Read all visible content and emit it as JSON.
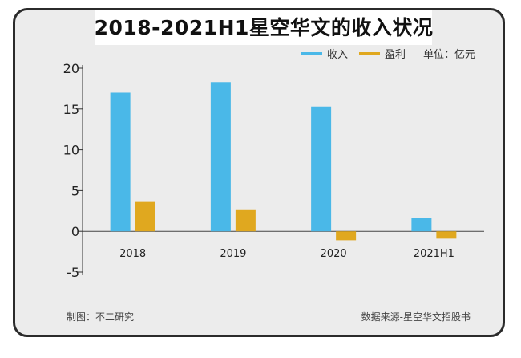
{
  "title": "2018-2021H1星空华文的收入状况",
  "legend": {
    "items": [
      {
        "label": "收入",
        "color": "#4ab8e8"
      },
      {
        "label": "盈利",
        "color": "#e0a81f"
      }
    ],
    "unit": "单位：亿元"
  },
  "footer": {
    "made_by": "制图：不二研究",
    "source": "数据来源-星空华文招股书"
  },
  "chart_data": {
    "type": "bar",
    "categories": [
      "2018",
      "2019",
      "2020",
      "2021H1"
    ],
    "series": [
      {
        "name": "收入",
        "color": "#4ab8e8",
        "values": [
          17.0,
          18.3,
          15.3,
          1.6
        ]
      },
      {
        "name": "盈利",
        "color": "#e0a81f",
        "values": [
          3.6,
          2.7,
          -1.1,
          -0.9
        ]
      }
    ],
    "ylim": [
      -5,
      20
    ],
    "yticks": [
      20,
      15,
      10,
      5,
      0,
      -5
    ],
    "grid": false,
    "legend_position": "top-right"
  }
}
